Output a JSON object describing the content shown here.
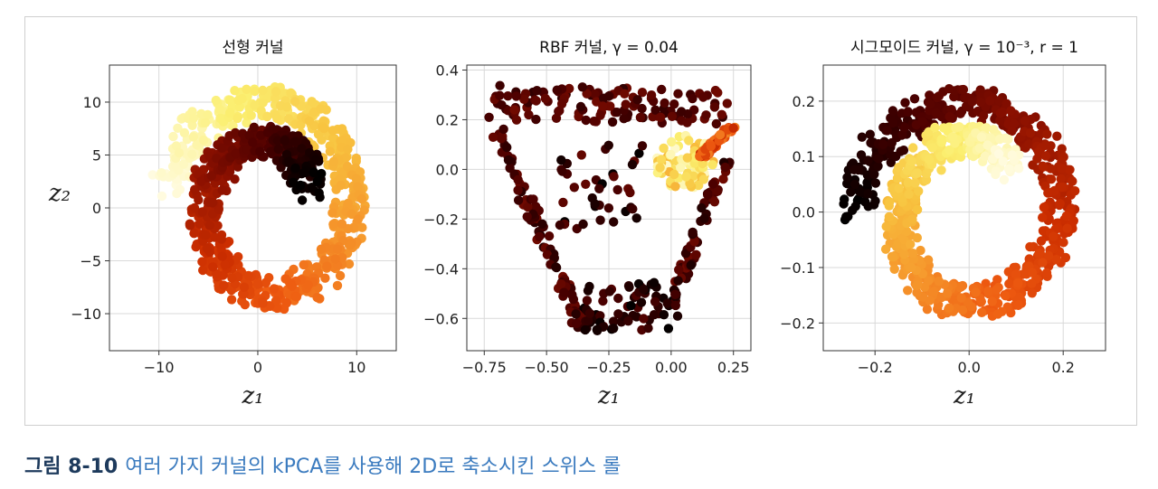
{
  "caption": {
    "label": "그림 8-10",
    "text": "여러 가지 커널의 kPCA를 사용해 2D로 축소시킨 스위스 롤"
  },
  "colormap": [
    "#000000",
    "#4a0000",
    "#8b1000",
    "#cc2e00",
    "#ee5a10",
    "#f5922a",
    "#f8c440",
    "#fbef70",
    "#fffbe0"
  ],
  "chart_data": [
    {
      "type": "scatter",
      "title": "선형 커널",
      "xlabel": "z₁",
      "ylabel": "z₂",
      "xlim": [
        -15,
        14
      ],
      "ylim": [
        -13.5,
        13.5
      ],
      "xticks": [
        -10,
        0,
        10
      ],
      "yticks": [
        -10,
        -5,
        0,
        5,
        10
      ],
      "xtick_labels": [
        "−10",
        "0",
        "10"
      ],
      "ytick_labels": [
        "−10",
        "−5",
        "0",
        "5",
        "10"
      ],
      "grid": true,
      "shape": "spiral",
      "center": [
        1,
        0
      ],
      "rx_start": 10.2,
      "rx_end": 4.5,
      "ry_start": 10.8,
      "ry_end": 5.5,
      "angle_start": 170,
      "angle_end": -340,
      "color_order": "descending"
    },
    {
      "type": "scatter",
      "title": "RBF 커널, γ = 0.04",
      "xlabel": "z₁",
      "ylabel": "",
      "xlim": [
        -0.82,
        0.32
      ],
      "ylim": [
        -0.73,
        0.42
      ],
      "xticks": [
        -0.75,
        -0.5,
        -0.25,
        0.0,
        0.25
      ],
      "yticks": [
        -0.6,
        -0.4,
        -0.2,
        0.0,
        0.2,
        0.4
      ],
      "xtick_labels": [
        "−0.75",
        "−0.50",
        "−0.25",
        "0.00",
        "0.25"
      ],
      "ytick_labels": [
        "−0.6",
        "−0.4",
        "−0.2",
        "0.0",
        "0.2",
        "0.4"
      ],
      "grid": true,
      "shape": "triangle"
    },
    {
      "type": "scatter",
      "title": "시그모이드 커널, γ = 10⁻³, r = 1",
      "xlabel": "z₁",
      "ylabel": "",
      "xlim": [
        -0.31,
        0.29
      ],
      "ylim": [
        -0.25,
        0.265
      ],
      "xticks": [
        -0.2,
        0.0,
        0.2
      ],
      "yticks": [
        -0.2,
        -0.1,
        0.0,
        0.1,
        0.2
      ],
      "xtick_labels": [
        "−0.2",
        "0.0",
        "0.2"
      ],
      "ytick_labels": [
        "−0.2",
        "−0.1",
        "0.0",
        "0.1",
        "0.2"
      ],
      "grid": true,
      "shape": "spiral",
      "center": [
        0.0,
        0.0
      ],
      "rx_start": 0.24,
      "rx_end": 0.11,
      "ry_start": 0.21,
      "ry_end": 0.12,
      "angle_start": 180,
      "angle_end": -320,
      "color_order": "ascending"
    }
  ]
}
